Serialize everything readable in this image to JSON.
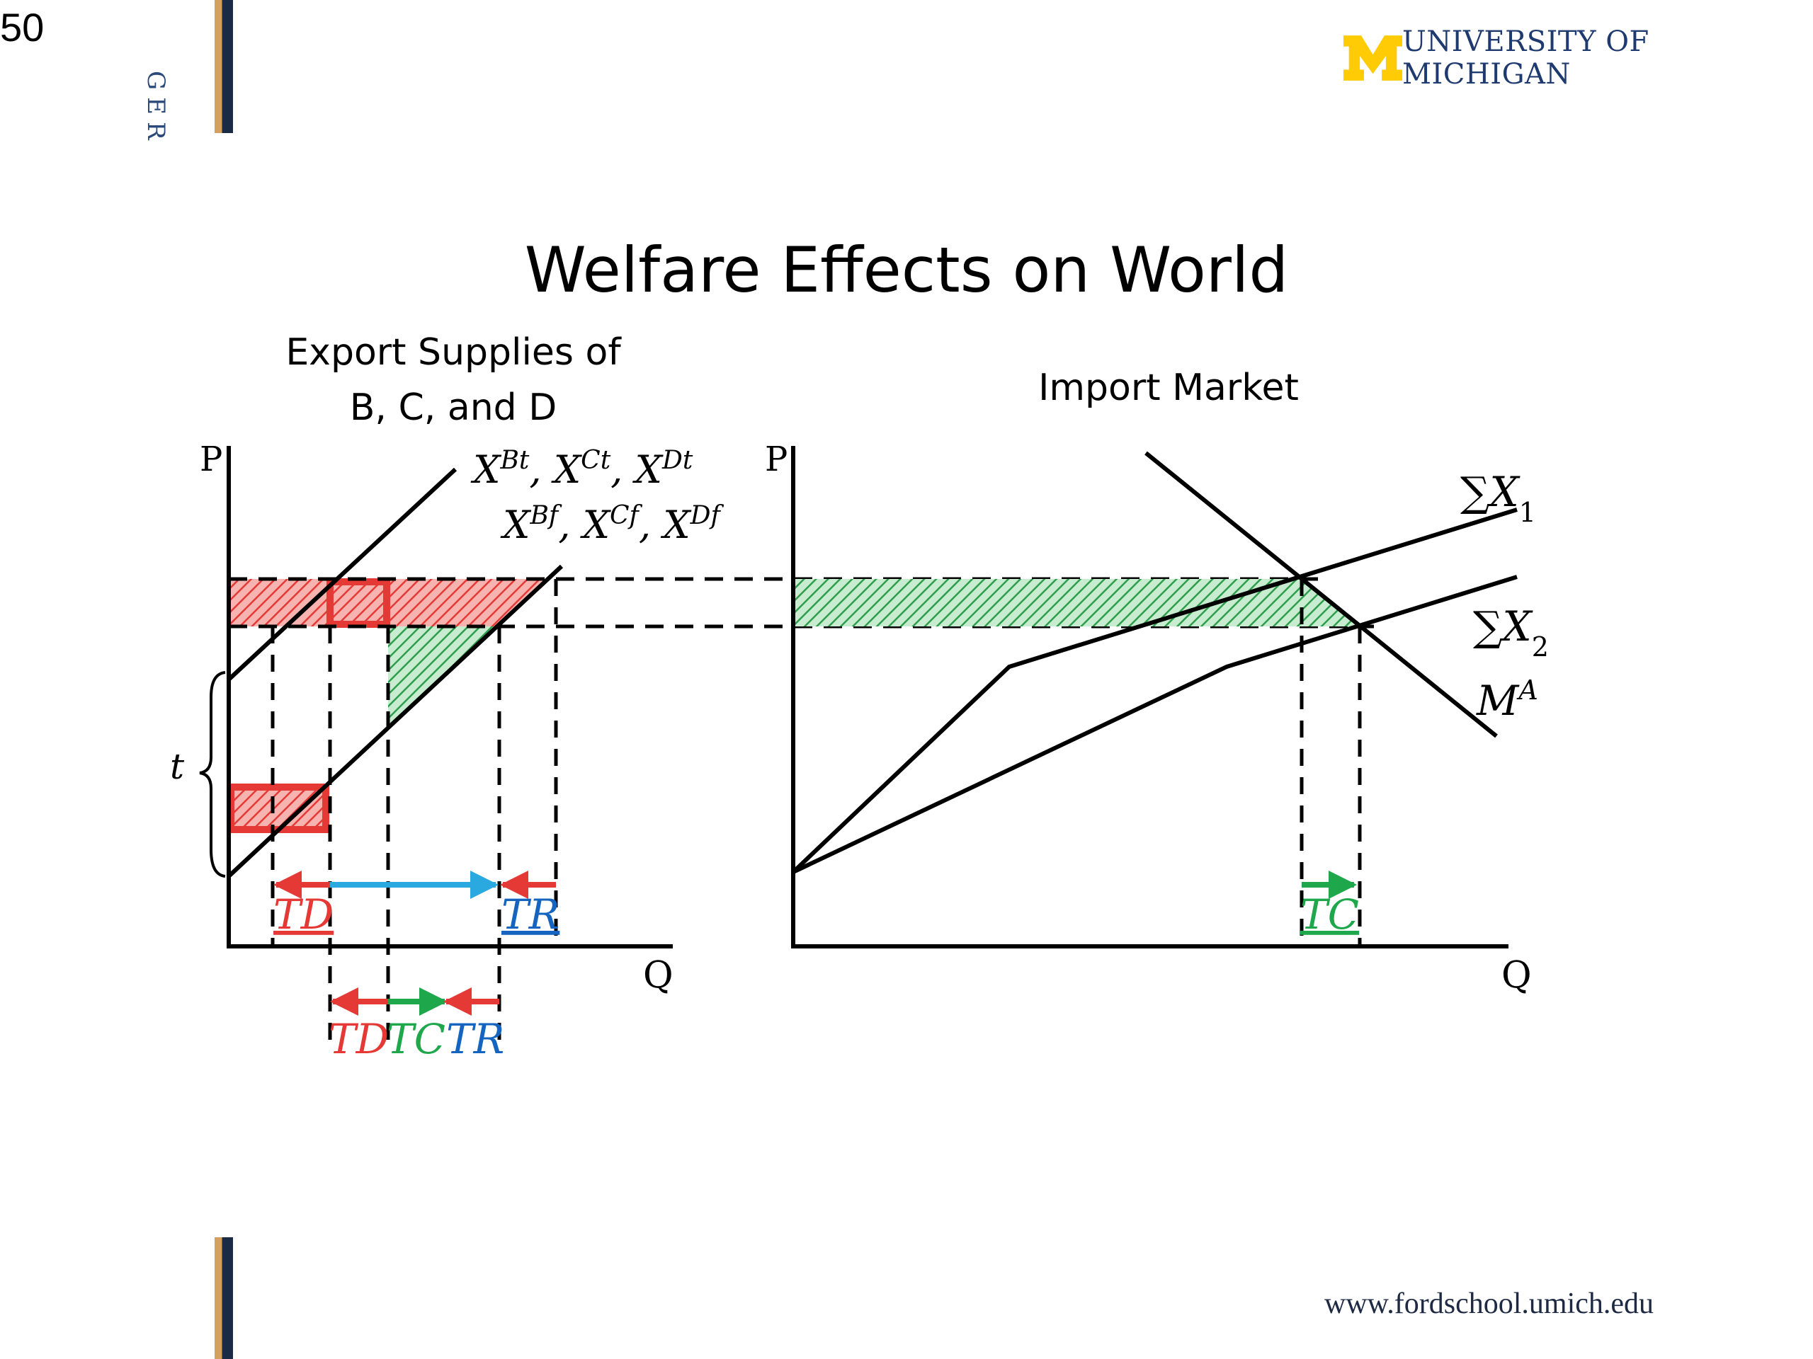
{
  "slide": {
    "number": "50",
    "side_text": "GER",
    "logo_text": "UNIVERSITY OF MICHIGAN",
    "website": "www.fordschool.umich.edu",
    "title": "Welfare Effects on World",
    "colors": {
      "maize": "#FFCB05",
      "blue": "#1E3A6E",
      "red": "#E53935",
      "green": "#1FA84B",
      "cyan": "#29A9E0",
      "label_blue": "#1565C0"
    }
  },
  "left_panel": {
    "title_line1": "Export Supplies of",
    "title_line2": "B, C, and D",
    "axis_p": "P",
    "axis_q": "Q",
    "supply_tariff_label": "X^Bt, X^Ct, X^Dt",
    "supply_free_label": "X^Bf, X^Cf, X^Df",
    "tariff_label": "t",
    "labels": {
      "td": "TD",
      "tr": "TR",
      "td2": "TD",
      "tc2": "TC",
      "tr2": "TR"
    }
  },
  "right_panel": {
    "title": "Import Market",
    "axis_p": "P",
    "axis_q": "Q",
    "curve_sx1": "ΣX1",
    "curve_sx2": "ΣX2",
    "curve_ma": "MA",
    "label_tc": "TC"
  }
}
